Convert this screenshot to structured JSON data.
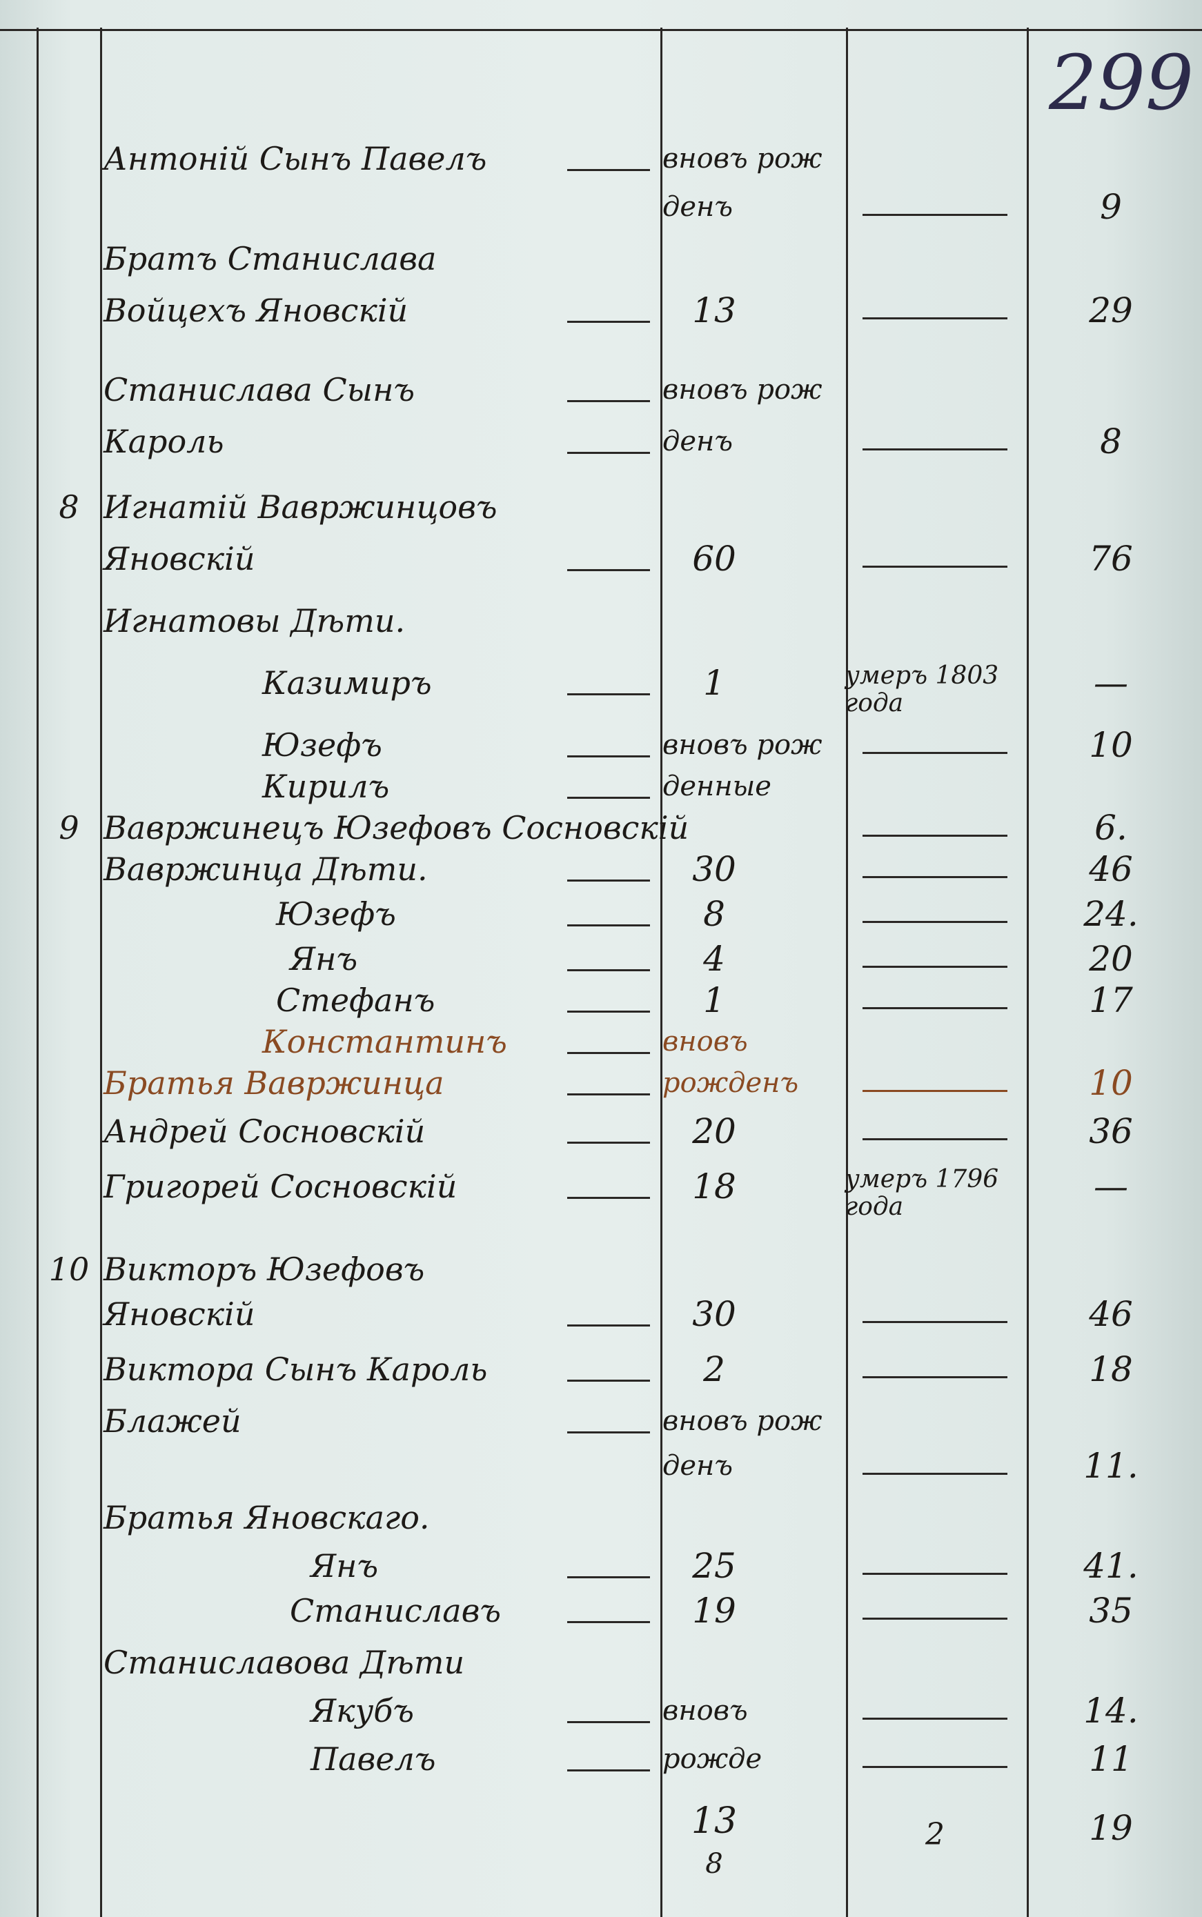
{
  "page_number": "299",
  "rows": [
    {
      "name": "Антоній Сынъ Павелъ",
      "age": "вновъ рож"
    },
    {
      "age": "денъ",
      "total": "9"
    },
    {
      "name": "Братъ Станислава"
    },
    {
      "name": "Войцехъ Яновскій",
      "age": "13",
      "total": "29"
    },
    {
      "name": "Станислава Сынъ",
      "age": "вновъ рож"
    },
    {
      "name": "Кароль",
      "age": "денъ",
      "total": "8"
    },
    {
      "num": "8",
      "name": "Игнатій Вавржинцовъ"
    },
    {
      "name": "Яновскій",
      "age": "60",
      "total": "76"
    },
    {
      "name": "Игнатовы Дѣти."
    },
    {
      "name": "Казимиръ",
      "age": "1",
      "note": "умеръ 1803 года",
      "total": "—"
    },
    {
      "name": "Юзефъ",
      "age": "вновъ рож",
      "total": "10"
    },
    {
      "name": "Кирилъ",
      "age": "денные"
    },
    {
      "num": "9",
      "name": "Вавржинецъ Юзефовъ Сосновскій",
      "total": "6."
    },
    {
      "name": "Вавржинца Дѣти.",
      "age": "30",
      "total": "46"
    },
    {
      "name": "Юзефъ",
      "age": "8",
      "total": "24."
    },
    {
      "name": "Янъ",
      "age": "4",
      "total": "20"
    },
    {
      "name": "Стефанъ",
      "age": "1",
      "total": "17"
    },
    {
      "name": "Константинъ",
      "age": "вновъ",
      "red": true
    },
    {
      "name": "Братья Вавржинца",
      "age": "рожденъ",
      "total": "10",
      "red": true
    },
    {
      "name": "Андрей Сосновскій",
      "age": "20",
      "total": "36"
    },
    {
      "name": "Григорей Сосновскій",
      "age": "18",
      "note": "умеръ 1796 года",
      "total": "—"
    },
    {
      "num": "10",
      "name": "Викторъ Юзефовъ"
    },
    {
      "name": "Яновскій",
      "age": "30",
      "total": "46"
    },
    {
      "name": "Виктора Сынъ Кароль",
      "age": "2",
      "total": "18"
    },
    {
      "name": "Блажей",
      "age": "вновъ рож"
    },
    {
      "age": "денъ",
      "total": "11."
    },
    {
      "name": "Братья Яновскаго."
    },
    {
      "name": "Янъ",
      "age": "25",
      "total": "41."
    },
    {
      "name": "Станиславъ",
      "age": "19",
      "total": "35"
    },
    {
      "name": "Станиславова Дѣти"
    },
    {
      "name": "Якубъ",
      "age": "вновъ",
      "total": "14."
    },
    {
      "name": "Павелъ",
      "age": "рожде",
      "total": "11"
    }
  ],
  "totals": {
    "age": "13",
    "age_sub": "8",
    "note": "2",
    "total": "19"
  }
}
